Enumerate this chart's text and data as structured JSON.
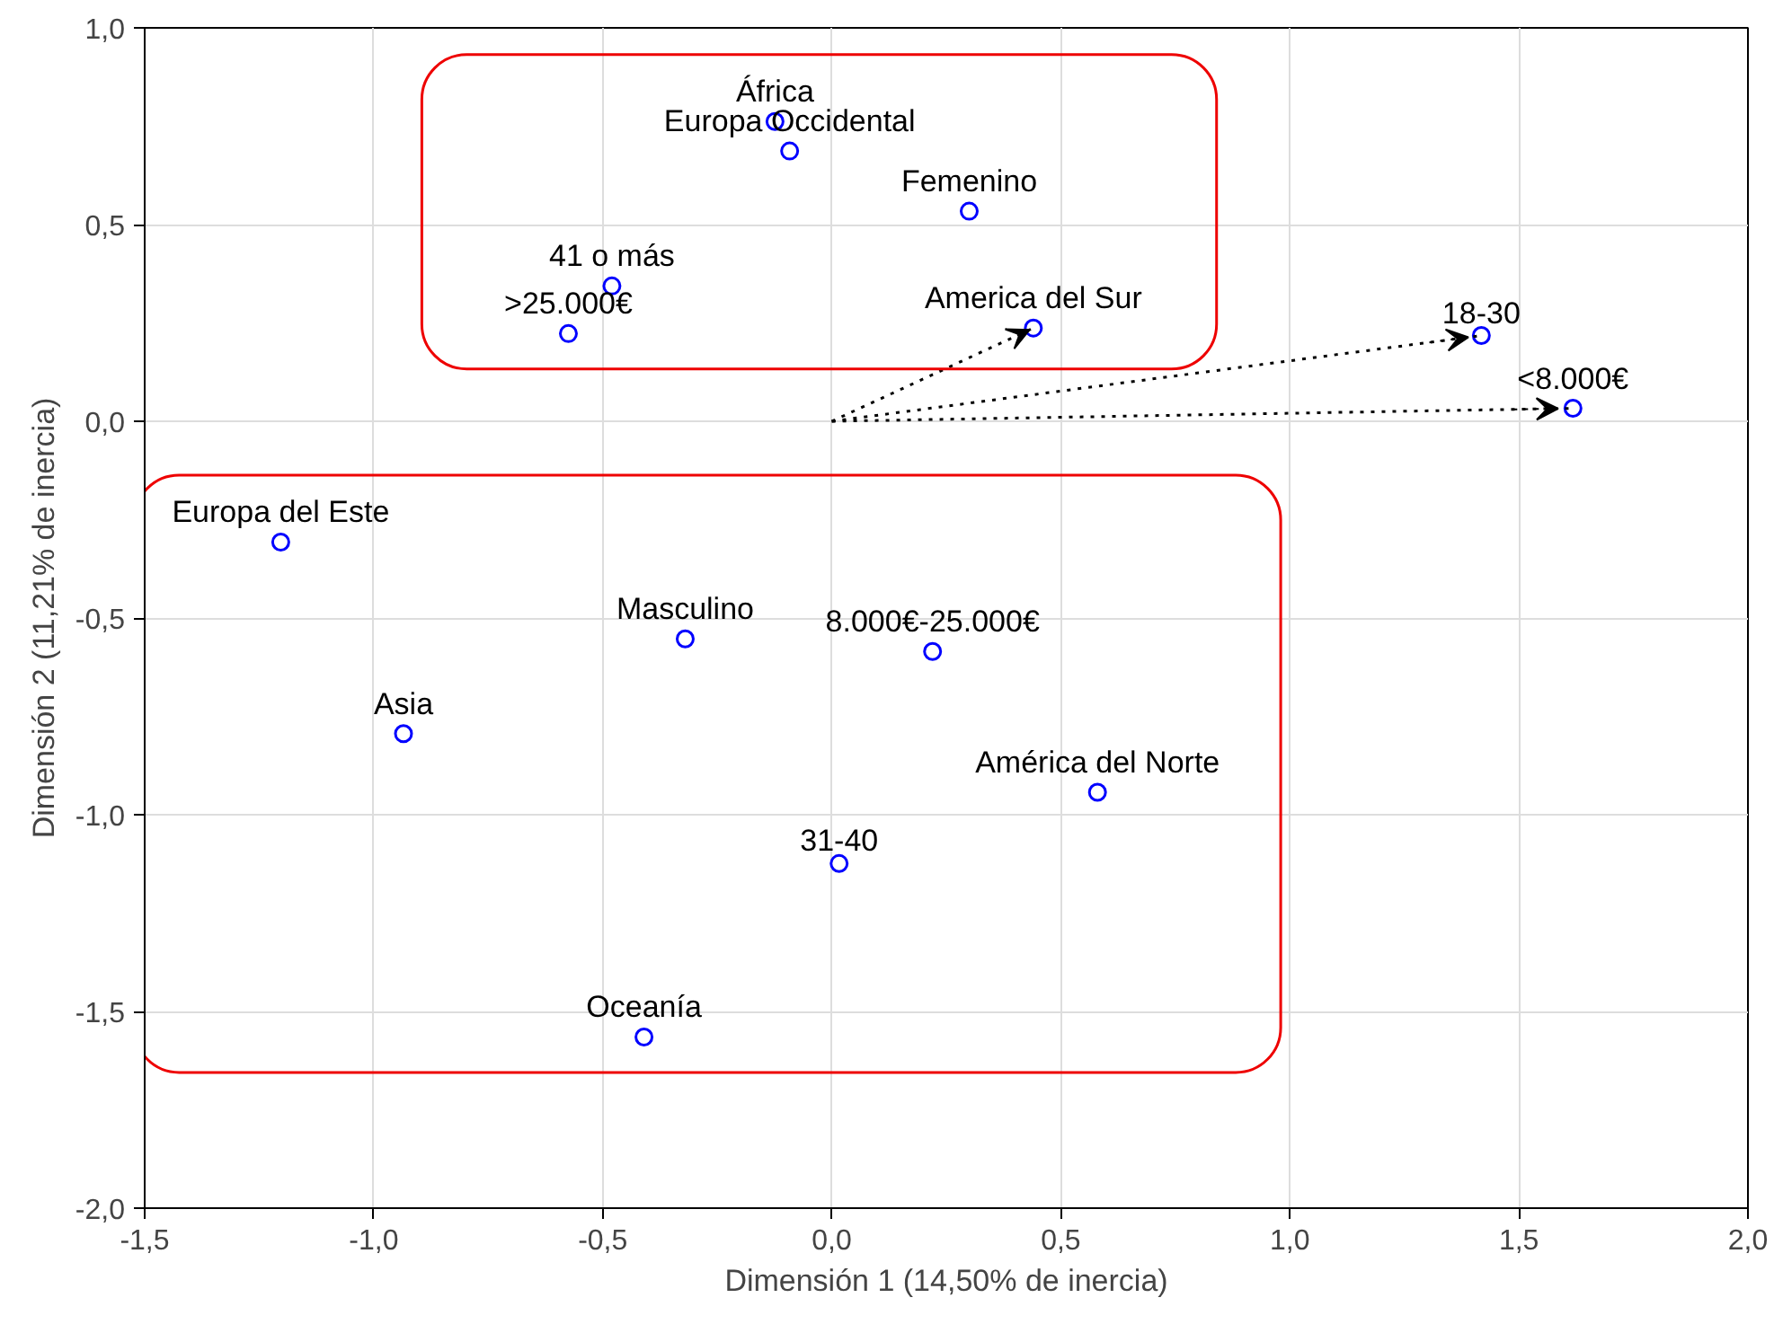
{
  "chart_data": {
    "type": "scatter",
    "xlabel": "Dimensión 1 (14,50% de inercia)",
    "ylabel": "Dimensión 2 (11,21% de inercia)",
    "xlim": [
      -1.5,
      2.0
    ],
    "ylim": [
      -2.0,
      1.0
    ],
    "xticks": [
      {
        "value": -1.5,
        "label": "-1,5"
      },
      {
        "value": -1.0,
        "label": "-1,0"
      },
      {
        "value": -0.5,
        "label": "-0,5"
      },
      {
        "value": 0.0,
        "label": "0,0"
      },
      {
        "value": 0.5,
        "label": "0,5"
      },
      {
        "value": 1.0,
        "label": "1,0"
      },
      {
        "value": 1.5,
        "label": "1,5"
      },
      {
        "value": 2.0,
        "label": "2,0"
      }
    ],
    "yticks": [
      {
        "value": -2.0,
        "label": "-2,0"
      },
      {
        "value": -1.5,
        "label": "-1,5"
      },
      {
        "value": -1.0,
        "label": "-1,0"
      },
      {
        "value": -0.5,
        "label": "-0,5"
      },
      {
        "value": 0.0,
        "label": "0,0"
      },
      {
        "value": 0.5,
        "label": "0,5"
      },
      {
        "value": 1.0,
        "label": "1,0"
      }
    ],
    "grid": true,
    "series": [
      {
        "marker": "circle",
        "color": "#0000ff",
        "x": [
          -0.124,
          -0.092,
          0.3,
          -0.48,
          -0.575,
          0.44
        ],
        "values": [
          0.762,
          0.687,
          0.534,
          0.344,
          0.223,
          0.237
        ]
      },
      {
        "marker": "circle",
        "color": "#0000ff",
        "x": [
          -1.203,
          -0.32,
          0.22,
          -0.935,
          0.58,
          0.016,
          -0.41
        ],
        "values": [
          -0.307,
          -0.553,
          -0.585,
          -0.794,
          -0.943,
          -1.124,
          -1.565
        ]
      },
      {
        "marker": "circle",
        "color": "#0000ff",
        "x": [
          1.418,
          1.618
        ],
        "values": [
          0.218,
          0.033
        ]
      },
      {
        "type": "line",
        "color": "#000000",
        "line_style": "dotted",
        "marker": "none",
        "x": [
          0.0,
          0.44
        ],
        "values": [
          0.0,
          0.237
        ]
      },
      {
        "type": "line",
        "color": "#000000",
        "line_style": "dotted",
        "marker": "none",
        "x": [
          0.0,
          1.418
        ],
        "values": [
          0.0,
          0.218
        ]
      },
      {
        "type": "line",
        "color": "#000000",
        "line_style": "dotted",
        "marker": "none",
        "x": [
          0.0,
          1.618
        ],
        "values": [
          0.0,
          0.033
        ]
      }
    ],
    "annotations": [
      {
        "text": "África",
        "x": -0.124,
        "y": 0.762
      },
      {
        "text": "Europa Occidental",
        "x": -0.092,
        "y": 0.687
      },
      {
        "text": "Femenino",
        "x": 0.3,
        "y": 0.534
      },
      {
        "text": "41 o más",
        "x": -0.48,
        "y": 0.344
      },
      {
        "text": ">25.000€",
        "x": -0.575,
        "y": 0.223
      },
      {
        "text": "America del Sur",
        "x": 0.44,
        "y": 0.237
      },
      {
        "text": "Europa del Este",
        "x": -1.203,
        "y": -0.307
      },
      {
        "text": "Masculino",
        "x": -0.32,
        "y": -0.553
      },
      {
        "text": "8.000€-25.000€",
        "x": 0.22,
        "y": -0.585
      },
      {
        "text": "Asia",
        "x": -0.935,
        "y": -0.794
      },
      {
        "text": "América del Norte",
        "x": 0.58,
        "y": -0.943
      },
      {
        "text": "31-40",
        "x": 0.016,
        "y": -1.124
      },
      {
        "text": "Oceanía",
        "x": -0.41,
        "y": -1.565
      },
      {
        "text": "18-30",
        "x": 1.418,
        "y": 0.218
      },
      {
        "text": "<8.000€",
        "x": 1.618,
        "y": 0.033
      }
    ]
  }
}
